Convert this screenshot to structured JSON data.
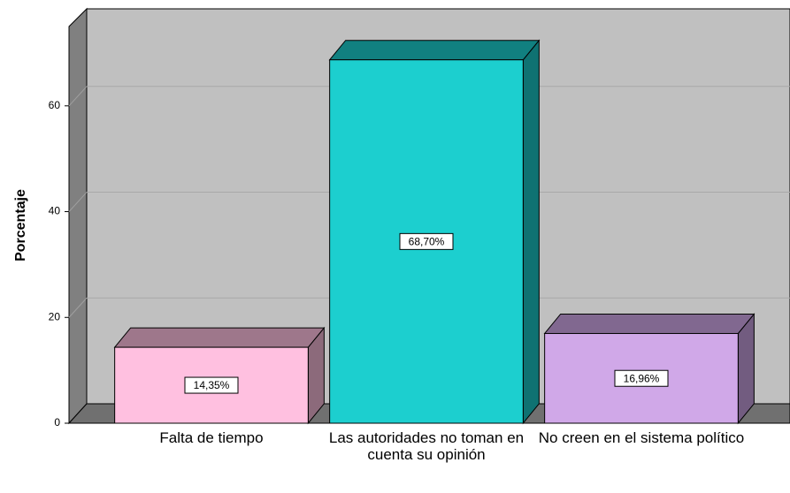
{
  "chart_data": {
    "type": "bar3d",
    "ylabel": "Porcentaje",
    "categories": [
      "Falta de tiempo",
      "Las autoridades no toman en cuenta su opinión",
      "No creen en el sistema político"
    ],
    "values": [
      14.35,
      68.7,
      16.96
    ],
    "value_labels": [
      "14,35%",
      "68,70%",
      "16,96%"
    ],
    "colors": [
      "#ffc0e0",
      "#1ccfcf",
      "#d0a8e8"
    ],
    "ylim": [
      0,
      75
    ],
    "yticks": [
      0,
      20,
      40,
      60
    ],
    "grid": true
  }
}
